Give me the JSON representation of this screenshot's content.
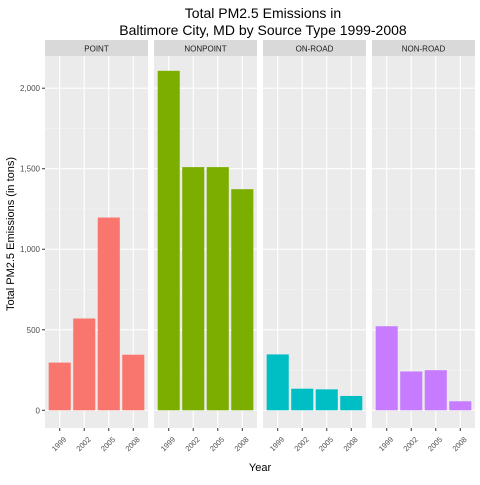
{
  "chart_data": {
    "type": "bar",
    "title": "Total PM2.5 Emissions in Baltimore City, MD by Source Type 1999-2008",
    "title_lines": [
      "Total PM2.5 Emissions in",
      "Baltimore City, MD by Source Type 1999-2008"
    ],
    "xlabel": "Year",
    "ylabel": "Total PM2.5 Emissions (in tons)",
    "categories": [
      "1999",
      "2002",
      "2005",
      "2008"
    ],
    "ylim": [
      0,
      2200
    ],
    "yticks": [
      0,
      500,
      1000,
      1500,
      2000
    ],
    "ytick_labels": [
      "0",
      "500",
      "1,000",
      "1,500",
      "2,000"
    ],
    "grid": true,
    "panels": [
      {
        "name": "POINT",
        "color": "#F8766D",
        "values": [
          296,
          570,
          1197,
          345
        ]
      },
      {
        "name": "NONPOINT",
        "color": "#7CAE00",
        "values": [
          2108,
          1510,
          1510,
          1373
        ]
      },
      {
        "name": "ON-ROAD",
        "color": "#00BFC4",
        "values": [
          347,
          134,
          130,
          89
        ]
      },
      {
        "name": "NON-ROAD",
        "color": "#C77CFF",
        "values": [
          522,
          241,
          249,
          56
        ]
      }
    ]
  }
}
